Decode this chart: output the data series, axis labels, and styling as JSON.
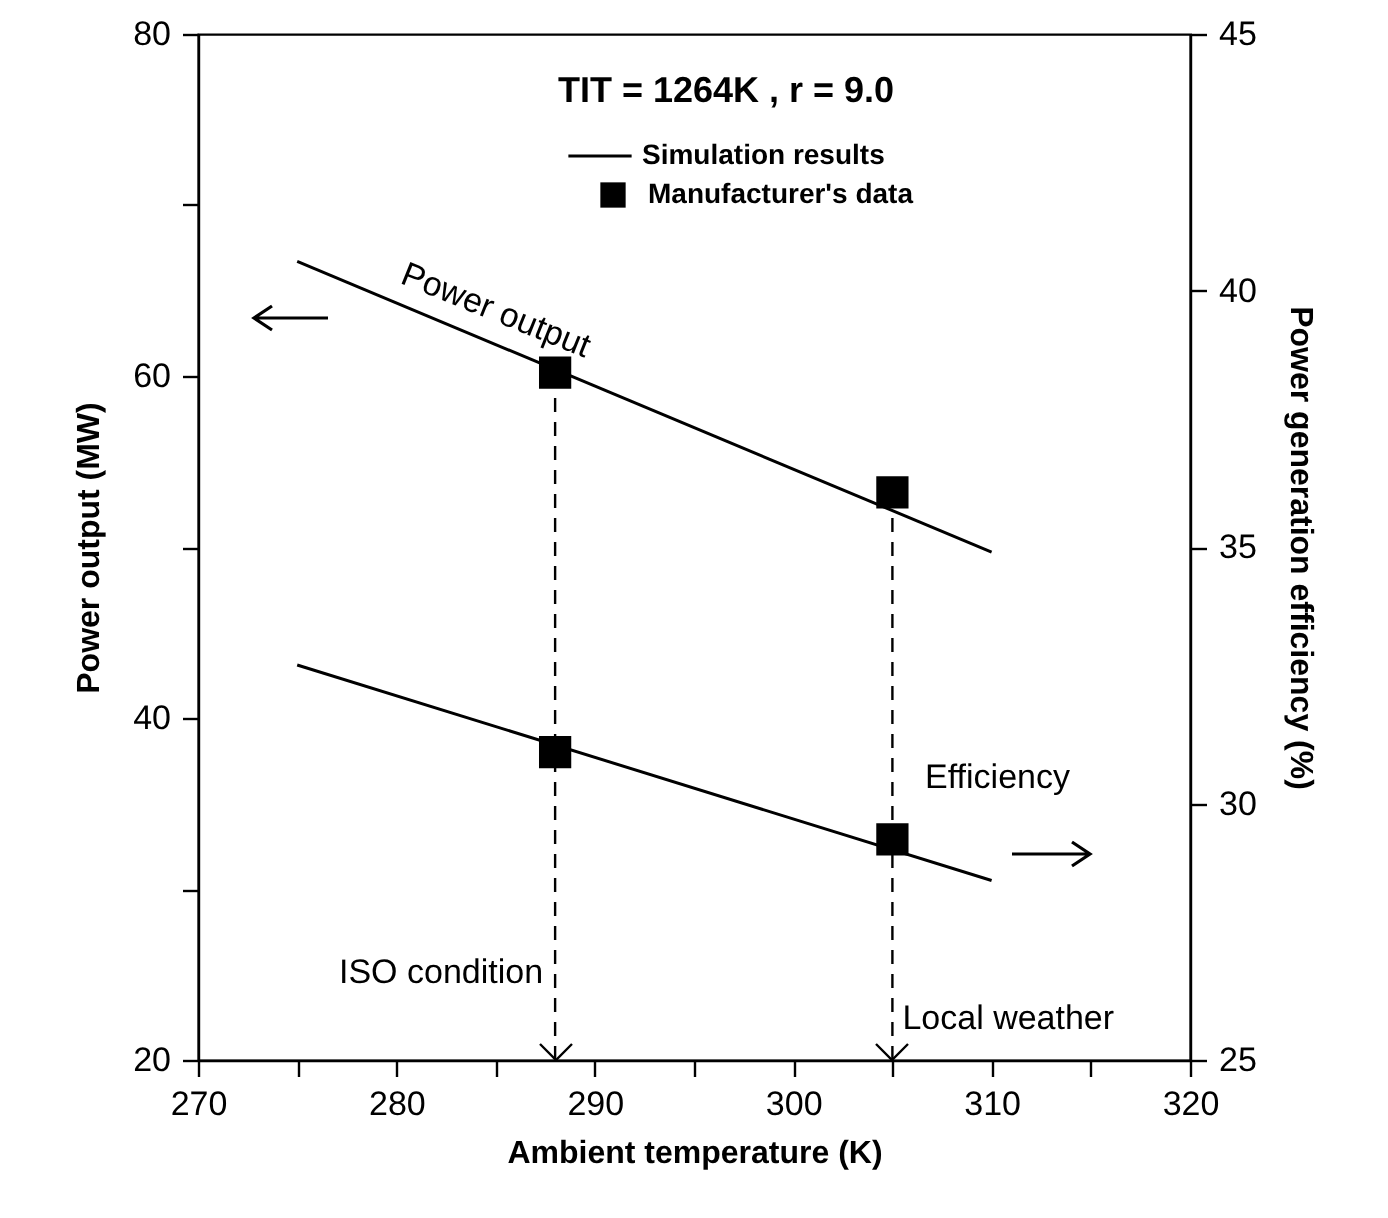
{
  "chart_data": {
    "type": "line",
    "xlabel": "Ambient temperature (K)",
    "ylabel": "Power output (MW)",
    "y2label": "Power generation efficiency (%)",
    "legend_title": "TIT = 1264K , r = 9.0",
    "legend": "top right",
    "grid": false,
    "xlim": [
      270,
      320
    ],
    "xticks": [
      270,
      {
        "value": 275,
        "label": null
      },
      280,
      {
        "value": 285,
        "label": null
      },
      290,
      {
        "value": 295,
        "label": null
      },
      300,
      {
        "value": 305,
        "label": null
      },
      310,
      {
        "value": 315,
        "label": null
      },
      320
    ],
    "ylim": [
      20,
      80
    ],
    "yticks": [
      20,
      {
        "value": 30,
        "label": null
      },
      40,
      {
        "value": 50,
        "label": null
      },
      60,
      {
        "value": 70,
        "label": null
      },
      80
    ],
    "y2lim": [
      25,
      45
    ],
    "y2ticks": [
      25,
      30,
      35,
      40,
      45
    ],
    "series": [
      {
        "name": "Simulation results",
        "axis": "y",
        "color": "#000000",
        "x": [
          275,
          310
        ],
        "values": [
          66.7,
          49.7
        ]
      },
      {
        "axis": "y2",
        "color": "#000000",
        "x": [
          275,
          310
        ],
        "values": [
          32.7,
          28.5
        ]
      },
      {
        "name": "Manufacturer's data",
        "type": "scatter",
        "marker": "square",
        "axis": "y",
        "color": "#000000",
        "x": [
          288,
          305
        ],
        "values": [
          60.2,
          53.2
        ]
      },
      {
        "type": "scatter",
        "marker": "square",
        "axis": "y2",
        "color": "#000000",
        "x": [
          288,
          305
        ],
        "values": [
          31.0,
          29.3
        ]
      }
    ],
    "ref_lines": [
      {
        "axis": "x",
        "value": 288,
        "label": "ISO condition",
        "line_style": "dashed",
        "color": "#000000"
      },
      {
        "axis": "x",
        "value": 305,
        "label": "Local weather",
        "line_style": "dashed",
        "color": "#000000"
      }
    ],
    "annotations": [
      "Power output",
      "Efficiency"
    ]
  }
}
